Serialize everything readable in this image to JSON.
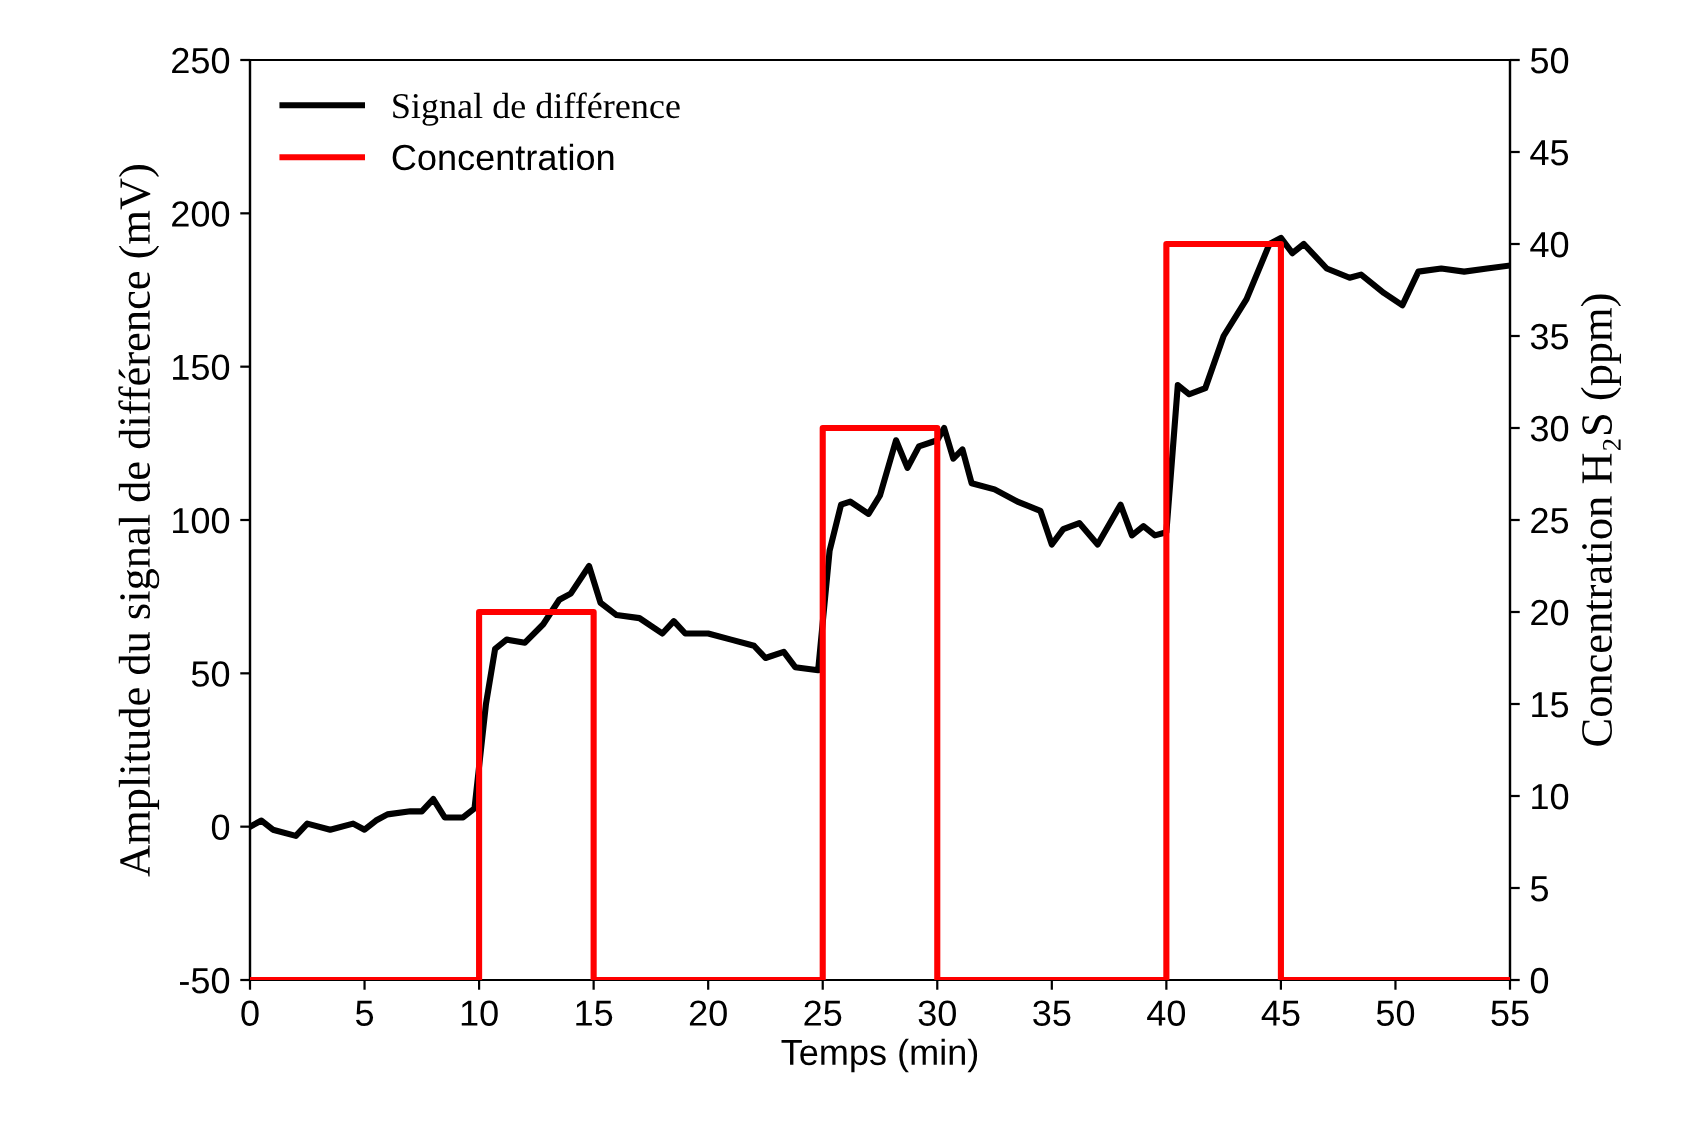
{
  "chart_data": {
    "type": "line",
    "xlabel": "Temps (min)",
    "ylabel": "Amplitude du signal de différence (mV)",
    "y2label": "Concentration H₂S (ppm)",
    "xlim": [
      0,
      55
    ],
    "xticks": [
      0,
      5,
      10,
      15,
      20,
      25,
      30,
      35,
      40,
      45,
      50,
      55
    ],
    "ylim": [
      -50,
      250
    ],
    "yticks": [
      -50,
      0,
      50,
      100,
      150,
      200,
      250
    ],
    "y2lim": [
      0,
      50
    ],
    "y2ticks": [
      0,
      5,
      10,
      15,
      20,
      25,
      30,
      35,
      40,
      45,
      50
    ],
    "grid": false,
    "legend": "top left",
    "marker": "none",
    "line_style": "solid",
    "series": [
      {
        "name": "Signal de différence",
        "color": "#000000",
        "x": [
          0,
          0.5,
          1,
          2,
          2.5,
          3.5,
          4.5,
          5,
          5.5,
          6,
          7,
          7.5,
          8,
          8.5,
          9.3,
          9.8,
          10.3,
          10.7,
          11.2,
          12,
          12.8,
          13.5,
          14,
          14.8,
          15.3,
          16,
          17,
          18,
          18.5,
          19,
          20,
          21,
          22,
          22.5,
          23.3,
          23.8,
          24.8,
          25.3,
          25.8,
          26.2,
          27,
          27.5,
          28.2,
          28.7,
          29.2,
          30,
          30.3,
          30.7,
          31.1,
          31.5,
          32.5,
          33.5,
          34.5,
          35,
          35.5,
          36.2,
          37,
          38,
          38.5,
          39,
          39.5,
          40,
          40.5,
          41,
          41.7,
          42.5,
          43.5,
          44.5,
          45,
          45.5,
          46,
          47,
          48,
          48.5,
          49.5,
          50.3,
          51,
          52,
          53,
          54,
          55
        ],
        "values": [
          0,
          2,
          -1,
          -3,
          1,
          -1,
          1,
          -1,
          2,
          4,
          5,
          5,
          9,
          3,
          3,
          6,
          40,
          58,
          61,
          60,
          66,
          74,
          76,
          85,
          73,
          69,
          68,
          63,
          67,
          63,
          63,
          61,
          59,
          55,
          57,
          52,
          51,
          90,
          105,
          106,
          102,
          108,
          126,
          117,
          124,
          126,
          130,
          120,
          123,
          112,
          110,
          106,
          103,
          92,
          97,
          99,
          92,
          105,
          95,
          98,
          95,
          96,
          144,
          141,
          143,
          160,
          172,
          190,
          192,
          187,
          190,
          182,
          179,
          180,
          174,
          170,
          181,
          182,
          181,
          182,
          183
        ]
      },
      {
        "name": "Concentration",
        "color": "#ff0000",
        "axis": "y2",
        "x": [
          0,
          10,
          10,
          15,
          15,
          25,
          25,
          30,
          30,
          40,
          40,
          45,
          45,
          55
        ],
        "values": [
          0,
          0,
          20,
          20,
          0,
          0,
          30,
          30,
          0,
          0,
          40,
          40,
          0,
          0
        ]
      }
    ]
  }
}
